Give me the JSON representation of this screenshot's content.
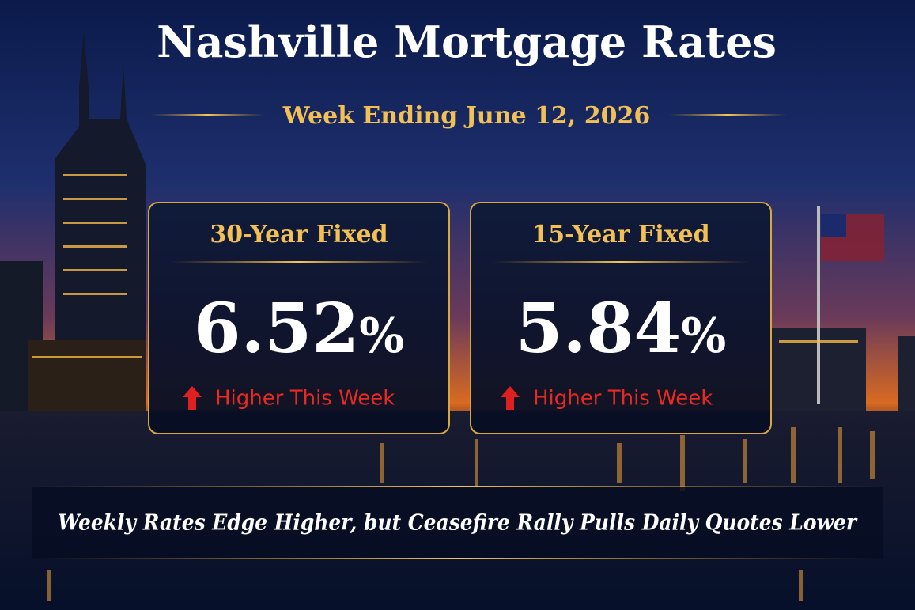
{
  "header": {
    "title": "Nashville Mortgage Rates",
    "subtitle": "Week Ending June 12, 2026"
  },
  "cards": [
    {
      "label": "30-Year Fixed",
      "rate": "6.52",
      "unit": "%",
      "trend": "Higher This Week"
    },
    {
      "label": "15-Year Fixed",
      "rate": "5.84",
      "unit": "%",
      "trend": "Higher This Week"
    }
  ],
  "footer": {
    "headline": "Weekly Rates Edge Higher, but Ceasefire Rally Pulls Daily Quotes Lower"
  }
}
